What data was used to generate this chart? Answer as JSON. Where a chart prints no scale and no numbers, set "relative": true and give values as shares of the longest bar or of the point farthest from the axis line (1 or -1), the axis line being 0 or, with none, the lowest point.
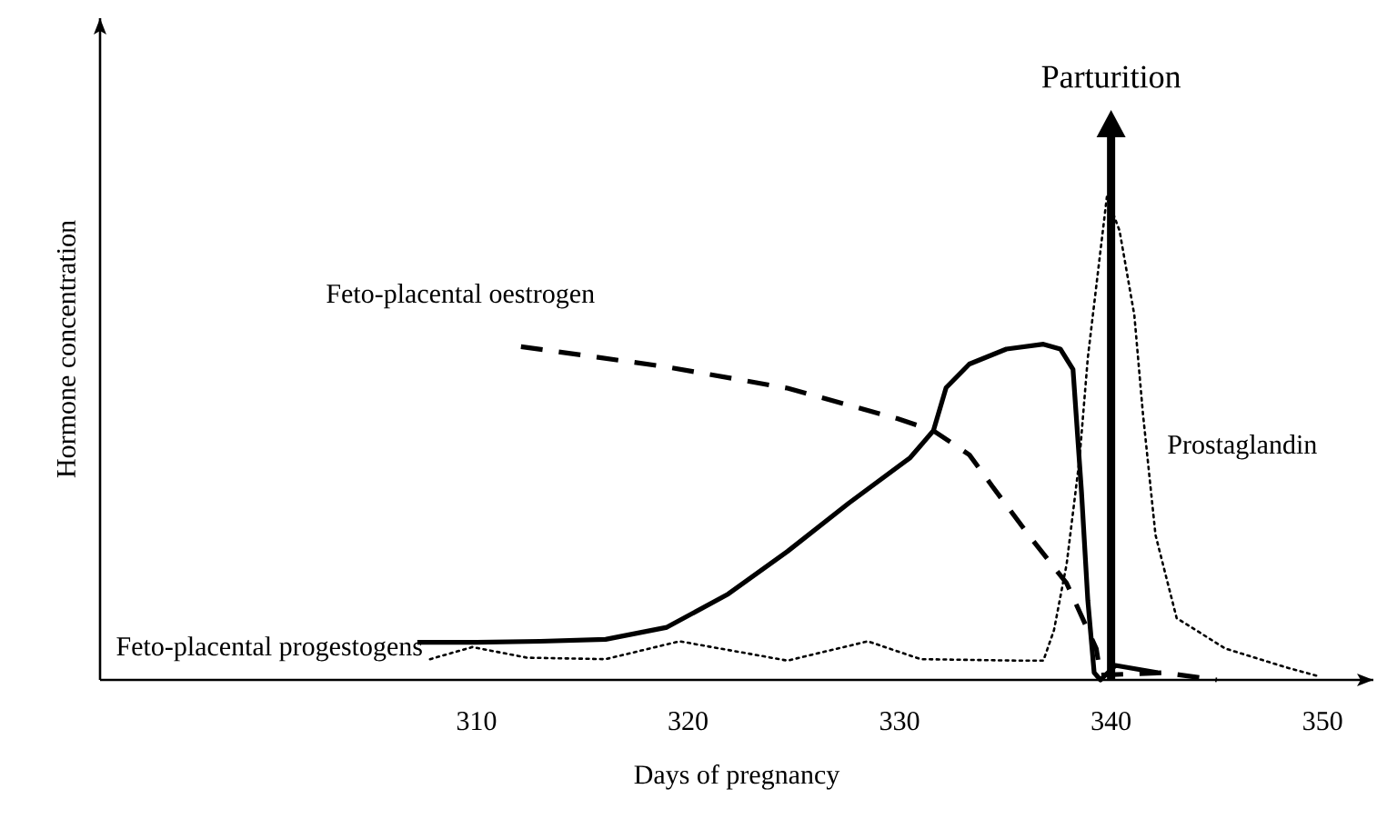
{
  "chart_data": {
    "type": "line",
    "xlabel": "Days of pregnancy",
    "ylabel": "Hormone concentration",
    "relative": true,
    "xlim": [
      292.2,
      352.4
    ],
    "xticks": [
      310,
      320,
      330,
      340,
      350
    ],
    "series": [
      {
        "name": "Feto-placental progestogens",
        "color": "#000000",
        "line_style": "solid",
        "x": [
          307.2,
          310,
          313,
          316.1,
          319,
          321.9,
          324.7,
          327.6,
          330.5,
          331.6,
          332.2,
          333.3,
          335.05,
          336.8,
          337.6,
          338.2,
          338.6,
          338.9,
          339.2,
          339.5,
          340.2,
          342.2
        ],
        "values": [
          0.078,
          0.078,
          0.08,
          0.084,
          0.109,
          0.178,
          0.266,
          0.366,
          0.46,
          0.516,
          0.605,
          0.654,
          0.685,
          0.695,
          0.685,
          0.643,
          0.39,
          0.165,
          0.015,
          0,
          0.03,
          0.015
        ]
      },
      {
        "name": "Feto-placental oestrogen",
        "color": "#000000",
        "line_style": "dashed",
        "x": [
          312.1,
          319,
          324.7,
          329.9,
          331.6,
          333.3,
          334.4,
          336.1,
          337.9,
          339.3,
          339.5,
          342.5,
          345
        ],
        "values": [
          0.69,
          0.648,
          0.604,
          0.541,
          0.516,
          0.466,
          0.4,
          0.3,
          0.2,
          0.065,
          0.01,
          0.015,
          0
        ]
      },
      {
        "name": "Prostaglandin",
        "color": "#000000",
        "line_style": "dotted",
        "x": [
          307.8,
          309.8,
          312.4,
          316.1,
          319.6,
          324.7,
          328.5,
          331,
          335.6,
          336.8,
          337.3,
          337.9,
          338.5,
          338.9,
          339.8,
          340.4,
          341.1,
          341.5,
          342.1,
          343.1,
          345.4,
          348.2,
          349.7
        ],
        "values": [
          0.043,
          0.068,
          0.046,
          0.043,
          0.08,
          0.04,
          0.08,
          0.043,
          0.04,
          0.04,
          0.103,
          0.24,
          0.454,
          0.667,
          1.0,
          0.93,
          0.755,
          0.554,
          0.3,
          0.128,
          0.065,
          0.027,
          0.009
        ]
      }
    ],
    "ref_lines": [
      {
        "axis": "x",
        "value": 340,
        "label": "Parturition",
        "color": "#000000"
      }
    ]
  }
}
